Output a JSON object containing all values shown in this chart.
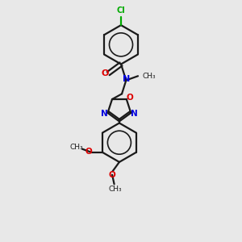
{
  "bg_color": "#e8e8e8",
  "bond_color": "#1a1a1a",
  "n_color": "#0000dd",
  "o_color": "#dd0000",
  "cl_color": "#00aa00",
  "line_width": 1.6,
  "xlim": [
    0,
    10
  ],
  "ylim": [
    0,
    14
  ]
}
